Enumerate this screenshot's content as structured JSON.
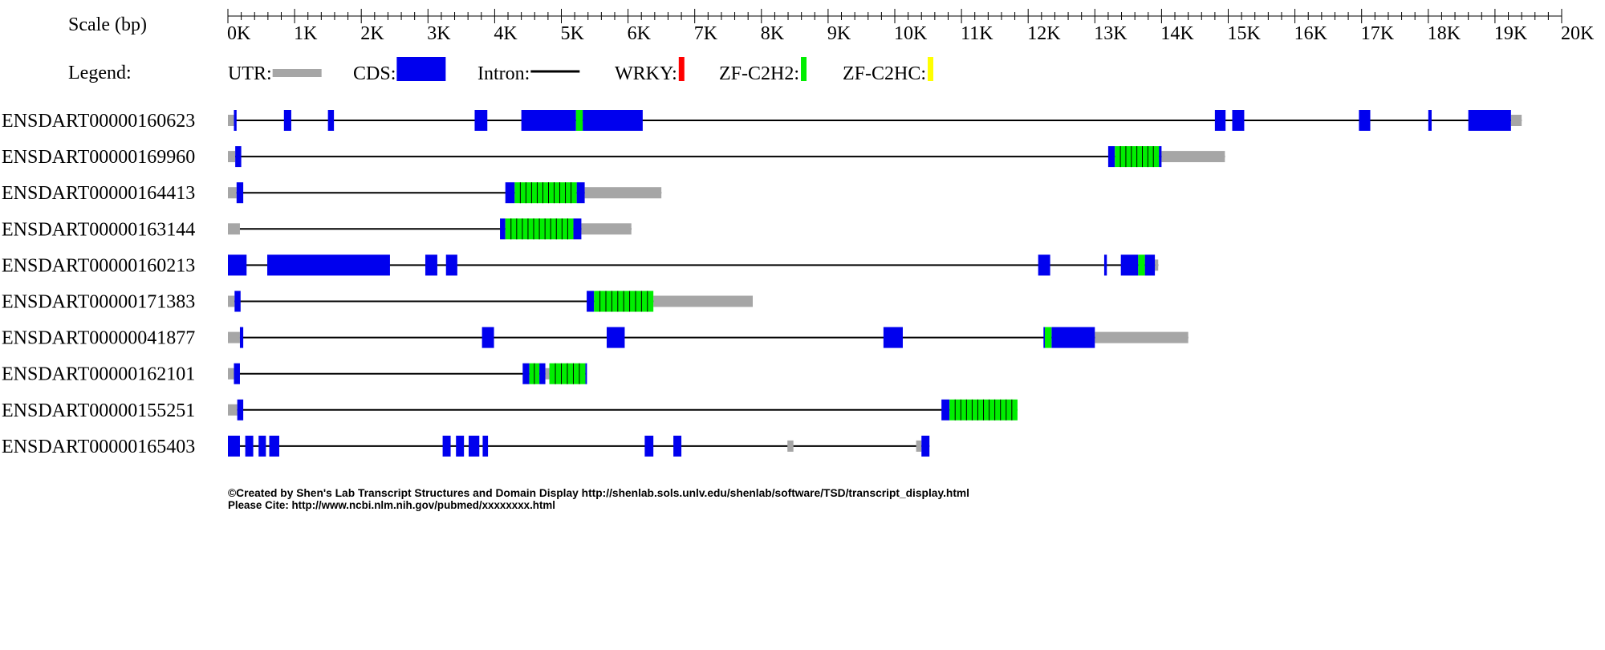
{
  "scale_label": "Scale (bp)",
  "legend": {
    "label": "Legend:",
    "items": [
      {
        "name": "UTR:",
        "kind": "utr",
        "color": "#a6a6a6"
      },
      {
        "name": "CDS:",
        "kind": "cds",
        "color": "#0000ee"
      },
      {
        "name": "Intron:",
        "kind": "intron",
        "color": "#000000"
      },
      {
        "name": "WRKY:",
        "kind": "domain",
        "color": "#ff0000"
      },
      {
        "name": "ZF-C2H2:",
        "kind": "domain",
        "color": "#00ee00"
      },
      {
        "name": "ZF-C2HC:",
        "kind": "domain",
        "color": "#ffff00"
      }
    ]
  },
  "chart_data": {
    "type": "gene_structure",
    "axis": {
      "min": 0,
      "max": 20000,
      "major_step": 1000,
      "minor_step": 200,
      "tick_labels": [
        "0K",
        "1K",
        "2K",
        "3K",
        "4K",
        "5K",
        "6K",
        "7K",
        "8K",
        "9K",
        "10K",
        "11K",
        "12K",
        "13K",
        "14K",
        "15K",
        "16K",
        "17K",
        "18K",
        "19K",
        "20K"
      ]
    },
    "transcripts": [
      {
        "name": "ENSDART00000160623",
        "start": 0,
        "end": 19400,
        "utr": [
          [
            0,
            90
          ],
          [
            19240,
            19400
          ]
        ],
        "cds": [
          [
            90,
            130
          ],
          [
            840,
            950
          ],
          [
            1500,
            1590
          ],
          [
            3700,
            3890
          ],
          [
            4400,
            5220
          ],
          [
            5320,
            6220
          ],
          [
            14800,
            14960
          ],
          [
            15060,
            15240
          ],
          [
            16960,
            17130
          ],
          [
            18000,
            18050
          ],
          [
            18600,
            19240
          ]
        ],
        "domains": [
          {
            "type": "ZF-C2H2",
            "start": 5220,
            "end": 5320
          }
        ]
      },
      {
        "name": "ENSDART00000169960",
        "start": 0,
        "end": 14950,
        "utr": [
          [
            0,
            110
          ],
          [
            14000,
            14950
          ]
        ],
        "cds": [
          [
            110,
            200
          ],
          [
            13200,
            13300
          ],
          [
            13960,
            14000
          ]
        ],
        "domains": [
          {
            "type": "ZF-C2H2",
            "start": 13300,
            "end": 13960
          }
        ]
      },
      {
        "name": "ENSDART00000164413",
        "start": 0,
        "end": 6500,
        "utr": [
          [
            0,
            130
          ],
          [
            5350,
            6500
          ]
        ],
        "cds": [
          [
            130,
            230
          ],
          [
            4160,
            4300
          ],
          [
            5230,
            5350
          ]
        ],
        "domains": [
          {
            "type": "ZF-C2H2",
            "start": 4300,
            "end": 5230
          }
        ]
      },
      {
        "name": "ENSDART00000163144",
        "start": 0,
        "end": 6050,
        "utr": [
          [
            0,
            180
          ],
          [
            5300,
            6050
          ]
        ],
        "cds": [
          [
            4080,
            4160
          ],
          [
            5180,
            5300
          ]
        ],
        "domains": [
          {
            "type": "ZF-C2H2",
            "start": 4160,
            "end": 5180
          }
        ]
      },
      {
        "name": "ENSDART00000160213",
        "start": 0,
        "end": 13950,
        "utr": [
          [
            13900,
            13950
          ]
        ],
        "cds": [
          [
            0,
            280
          ],
          [
            590,
            2430
          ],
          [
            2960,
            3140
          ],
          [
            3270,
            3440
          ],
          [
            12150,
            12330
          ],
          [
            13140,
            13180
          ],
          [
            13390,
            13650
          ],
          [
            13750,
            13900
          ]
        ],
        "domains": [
          {
            "type": "ZF-C2H2",
            "start": 13650,
            "end": 13750
          }
        ]
      },
      {
        "name": "ENSDART00000171383",
        "start": 0,
        "end": 7870,
        "utr": [
          [
            0,
            100
          ],
          [
            6380,
            7870
          ]
        ],
        "cds": [
          [
            100,
            190
          ],
          [
            5380,
            5490
          ]
        ],
        "domains": [
          {
            "type": "ZF-C2H2",
            "start": 5490,
            "end": 6380
          }
        ]
      },
      {
        "name": "ENSDART00000041877",
        "start": 0,
        "end": 14400,
        "utr": [
          [
            0,
            180
          ],
          [
            13000,
            14400
          ]
        ],
        "cds": [
          [
            180,
            230
          ],
          [
            3810,
            3990
          ],
          [
            5680,
            5950
          ],
          [
            9830,
            10120
          ],
          [
            12230,
            12250
          ],
          [
            12350,
            13000
          ]
        ],
        "domains": [
          {
            "type": "ZF-C2H2",
            "start": 12250,
            "end": 12350
          }
        ]
      },
      {
        "name": "ENSDART00000162101",
        "start": 0,
        "end": 5380,
        "utr": [
          [
            0,
            90
          ],
          [
            4760,
            4820
          ]
        ],
        "cds": [
          [
            90,
            180
          ],
          [
            4420,
            4520
          ],
          [
            4670,
            4760
          ],
          [
            5360,
            5380
          ]
        ],
        "domains": [
          {
            "type": "ZF-C2H2",
            "start": 4520,
            "end": 4670
          },
          {
            "type": "ZF-C2H2",
            "start": 4820,
            "end": 5360
          }
        ]
      },
      {
        "name": "ENSDART00000155251",
        "start": 0,
        "end": 11840,
        "utr": [
          [
            0,
            140
          ]
        ],
        "cds": [
          [
            140,
            230
          ],
          [
            10700,
            10820
          ]
        ],
        "domains": [
          {
            "type": "ZF-C2H2",
            "start": 10820,
            "end": 11840
          }
        ]
      },
      {
        "name": "ENSDART00000165403",
        "start": 0,
        "end": 10520,
        "utr": [
          [
            8390,
            8480
          ],
          [
            10320,
            10400
          ]
        ],
        "cds": [
          [
            0,
            180
          ],
          [
            260,
            380
          ],
          [
            460,
            570
          ],
          [
            620,
            770
          ],
          [
            3220,
            3340
          ],
          [
            3420,
            3540
          ],
          [
            3610,
            3770
          ],
          [
            3820,
            3900
          ],
          [
            6250,
            6380
          ],
          [
            6680,
            6800
          ],
          [
            10400,
            10520
          ]
        ],
        "domains": []
      }
    ]
  },
  "footer": {
    "line1": "©Created by Shen's Lab Transcript Structures and Domain Display http://shenlab.sols.unlv.edu/shenlab/software/TSD/transcript_display.html",
    "line2": "Please Cite: http://www.ncbi.nlm.nih.gov/pubmed/xxxxxxxx.html"
  }
}
